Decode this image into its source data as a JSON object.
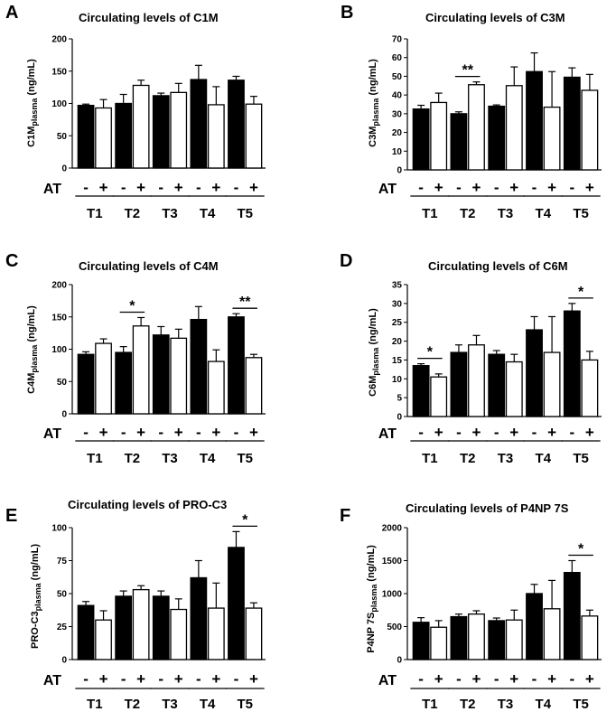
{
  "chart_data": [
    {
      "type": "bar",
      "panel": "A",
      "title": "Circulating levels of C1M",
      "ylabel_main": "C1M",
      "ylabel_sub": "plasma",
      "ylabel_unit": " (ng/mL)",
      "ylim": [
        0,
        200
      ],
      "yticks": [
        "0",
        "50",
        "100",
        "150",
        "200"
      ],
      "yticks_val": [
        0,
        50,
        100,
        150,
        200
      ],
      "categories": [
        "T1",
        "T2",
        "T3",
        "T4",
        "T5"
      ],
      "row_label": "AT",
      "signs": [
        "-",
        "+"
      ],
      "series": [
        {
          "name": "AT -",
          "fill": "#000000",
          "values": [
            97,
            100,
            112,
            137,
            136
          ],
          "errors": [
            2,
            14,
            4,
            22,
            6
          ]
        },
        {
          "name": "AT +",
          "fill": "#ffffff",
          "values": [
            93,
            128,
            117,
            98,
            99
          ],
          "errors": [
            13,
            8,
            14,
            28,
            12
          ]
        }
      ],
      "significance": []
    },
    {
      "type": "bar",
      "panel": "B",
      "title": "Circulating levels of C3M",
      "ylabel_main": "C3M",
      "ylabel_sub": "plasma",
      "ylabel_unit": " (ng/mL)",
      "ylim": [
        0,
        70
      ],
      "yticks": [
        "0",
        "10",
        "20",
        "30",
        "40",
        "50",
        "60",
        "70"
      ],
      "yticks_val": [
        0,
        10,
        20,
        30,
        40,
        50,
        60,
        70
      ],
      "categories": [
        "T1",
        "T2",
        "T3",
        "T4",
        "T5"
      ],
      "row_label": "AT",
      "signs": [
        "-",
        "+"
      ],
      "series": [
        {
          "name": "AT -",
          "fill": "#000000",
          "values": [
            32.5,
            30,
            34,
            52.5,
            49.5
          ],
          "errors": [
            2,
            1,
            0.7,
            10,
            5
          ]
        },
        {
          "name": "AT +",
          "fill": "#ffffff",
          "values": [
            36,
            45.5,
            45,
            33.5,
            42.5
          ],
          "errors": [
            5,
            1.5,
            10,
            19,
            8.5
          ]
        }
      ],
      "significance": [
        {
          "group": 1,
          "label": "**"
        }
      ]
    },
    {
      "type": "bar",
      "panel": "C",
      "title": "Circulating levels of C4M",
      "ylabel_main": "C4M",
      "ylabel_sub": "plasma",
      "ylabel_unit": " (ng/mL)",
      "ylim": [
        0,
        200
      ],
      "yticks": [
        "0",
        "50",
        "100",
        "150",
        "200"
      ],
      "yticks_val": [
        0,
        50,
        100,
        150,
        200
      ],
      "categories": [
        "T1",
        "T2",
        "T3",
        "T4",
        "T5"
      ],
      "row_label": "AT",
      "signs": [
        "-",
        "+"
      ],
      "series": [
        {
          "name": "AT -",
          "fill": "#000000",
          "values": [
            92,
            95,
            122,
            146,
            150
          ],
          "errors": [
            4,
            9,
            13,
            20,
            5
          ]
        },
        {
          "name": "AT +",
          "fill": "#ffffff",
          "values": [
            109,
            136,
            117,
            81,
            87
          ],
          "errors": [
            7,
            13,
            14,
            18,
            5
          ]
        }
      ],
      "significance": [
        {
          "group": 1,
          "label": "*"
        },
        {
          "group": 4,
          "label": "**"
        }
      ]
    },
    {
      "type": "bar",
      "panel": "D",
      "title": "Circulating levels of C6M",
      "ylabel_main": "C6M",
      "ylabel_sub": "plasma",
      "ylabel_unit": " (ng/mL)",
      "ylim": [
        0,
        35
      ],
      "yticks": [
        "0",
        "5",
        "10",
        "15",
        "20",
        "25",
        "30",
        "35"
      ],
      "yticks_val": [
        0,
        5,
        10,
        15,
        20,
        25,
        30,
        35
      ],
      "categories": [
        "T1",
        "T2",
        "T3",
        "T4",
        "T5"
      ],
      "row_label": "AT",
      "signs": [
        "-",
        "+"
      ],
      "series": [
        {
          "name": "AT -",
          "fill": "#000000",
          "values": [
            13.5,
            17,
            16.5,
            23,
            28
          ],
          "errors": [
            0.5,
            2,
            1,
            3.5,
            2
          ]
        },
        {
          "name": "AT +",
          "fill": "#ffffff",
          "values": [
            10.5,
            19,
            14.5,
            17,
            15
          ],
          "errors": [
            0.8,
            2.5,
            2,
            9.5,
            2.3
          ]
        }
      ],
      "significance": [
        {
          "group": 0,
          "label": "*"
        },
        {
          "group": 4,
          "label": "*"
        }
      ]
    },
    {
      "type": "bar",
      "panel": "E",
      "title": "Circulating levels of PRO-C3",
      "ylabel_main": "PRO-C3",
      "ylabel_sub": "plasma",
      "ylabel_unit": " (ng/mL)",
      "ylim": [
        0,
        100
      ],
      "yticks": [
        "0",
        "25",
        "50",
        "75",
        "100"
      ],
      "yticks_val": [
        0,
        25,
        50,
        75,
        100
      ],
      "categories": [
        "T1",
        "T2",
        "T3",
        "T4",
        "T5"
      ],
      "row_label": "AT",
      "signs": [
        "-",
        "+"
      ],
      "series": [
        {
          "name": "AT -",
          "fill": "#000000",
          "values": [
            41,
            48,
            48,
            62,
            85
          ],
          "errors": [
            3,
            4,
            4,
            13,
            12
          ]
        },
        {
          "name": "AT +",
          "fill": "#ffffff",
          "values": [
            30,
            53,
            38,
            39,
            39
          ],
          "errors": [
            7,
            3,
            8,
            19,
            4
          ]
        }
      ],
      "significance": [
        {
          "group": 4,
          "label": "*"
        }
      ]
    },
    {
      "type": "bar",
      "panel": "F",
      "title": "Circulating levels of P4NP 7S",
      "ylabel_main": "P4NP 7S",
      "ylabel_sub": "plasma",
      "ylabel_unit": " (ng/mL)",
      "ylim": [
        0,
        2000
      ],
      "yticks": [
        "0",
        "500",
        "1000",
        "1500",
        "2000"
      ],
      "yticks_val": [
        0,
        500,
        1000,
        1500,
        2000
      ],
      "categories": [
        "T1",
        "T2",
        "T3",
        "T4",
        "T5"
      ],
      "row_label": "AT",
      "signs": [
        "-",
        "+"
      ],
      "series": [
        {
          "name": "AT -",
          "fill": "#000000",
          "values": [
            565,
            650,
            590,
            1000,
            1320
          ],
          "errors": [
            70,
            40,
            40,
            140,
            180
          ]
        },
        {
          "name": "AT +",
          "fill": "#ffffff",
          "values": [
            490,
            690,
            600,
            770,
            660
          ],
          "errors": [
            100,
            50,
            150,
            430,
            90
          ]
        }
      ],
      "significance": [
        {
          "group": 4,
          "label": "*"
        }
      ]
    }
  ]
}
